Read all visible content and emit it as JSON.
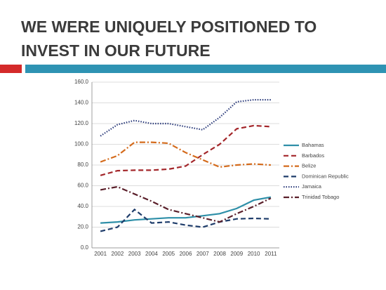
{
  "slide": {
    "title_lines": [
      "WE WERE UNIQUELY POSITIONED TO",
      "INVEST IN OUR FUTURE"
    ]
  },
  "chart_data": {
    "type": "line",
    "categories": [
      "2001",
      "2002",
      "2003",
      "2004",
      "2005",
      "2006",
      "2007",
      "2008",
      "2009",
      "2010",
      "2011"
    ],
    "ylim": [
      0,
      160
    ],
    "yticks": [
      {
        "value": 0,
        "label": "0.0"
      },
      {
        "value": 20,
        "label": "20.0"
      },
      {
        "value": 40,
        "label": "40.0"
      },
      {
        "value": 60,
        "label": "60.0"
      },
      {
        "value": 80,
        "label": "80.0"
      },
      {
        "value": 100,
        "label": "100.0"
      },
      {
        "value": 120,
        "label": "120.0"
      },
      {
        "value": 140,
        "label": "140.0"
      },
      {
        "value": 160,
        "label": "160.0"
      }
    ],
    "grid": true,
    "legend": "right",
    "series": [
      {
        "name": "Bahamas",
        "color": "#2e8fa8",
        "style": "solid",
        "values": [
          24,
          25,
          27,
          28,
          29,
          29,
          31,
          33,
          38,
          46,
          49
        ]
      },
      {
        "name": "Barbados",
        "color": "#a3262a",
        "style": "dashed",
        "values": [
          70,
          74.5,
          75,
          75,
          76,
          79,
          90,
          100,
          115,
          118,
          117
        ]
      },
      {
        "name": "Belize",
        "color": "#d46b1c",
        "style": "dashdot",
        "values": [
          83,
          89,
          102,
          102,
          101,
          92,
          85,
          78,
          80,
          81,
          80
        ]
      },
      {
        "name": "Dominican Republic",
        "color": "#1f3d6b",
        "style": "dashed",
        "values": [
          16,
          20,
          37,
          24,
          25,
          22,
          20,
          25,
          28,
          28.5,
          28
        ]
      },
      {
        "name": "Jamaica",
        "color": "#2a3a7a",
        "style": "dotted",
        "values": [
          108,
          119,
          123,
          120,
          120,
          117,
          114,
          126,
          141,
          143,
          143
        ]
      },
      {
        "name": "Trinidad Tobago",
        "color": "#5a1f2a",
        "style": "dashdot",
        "values": [
          56,
          59,
          52,
          45,
          37,
          33,
          29,
          25,
          33,
          40,
          48
        ]
      }
    ]
  }
}
